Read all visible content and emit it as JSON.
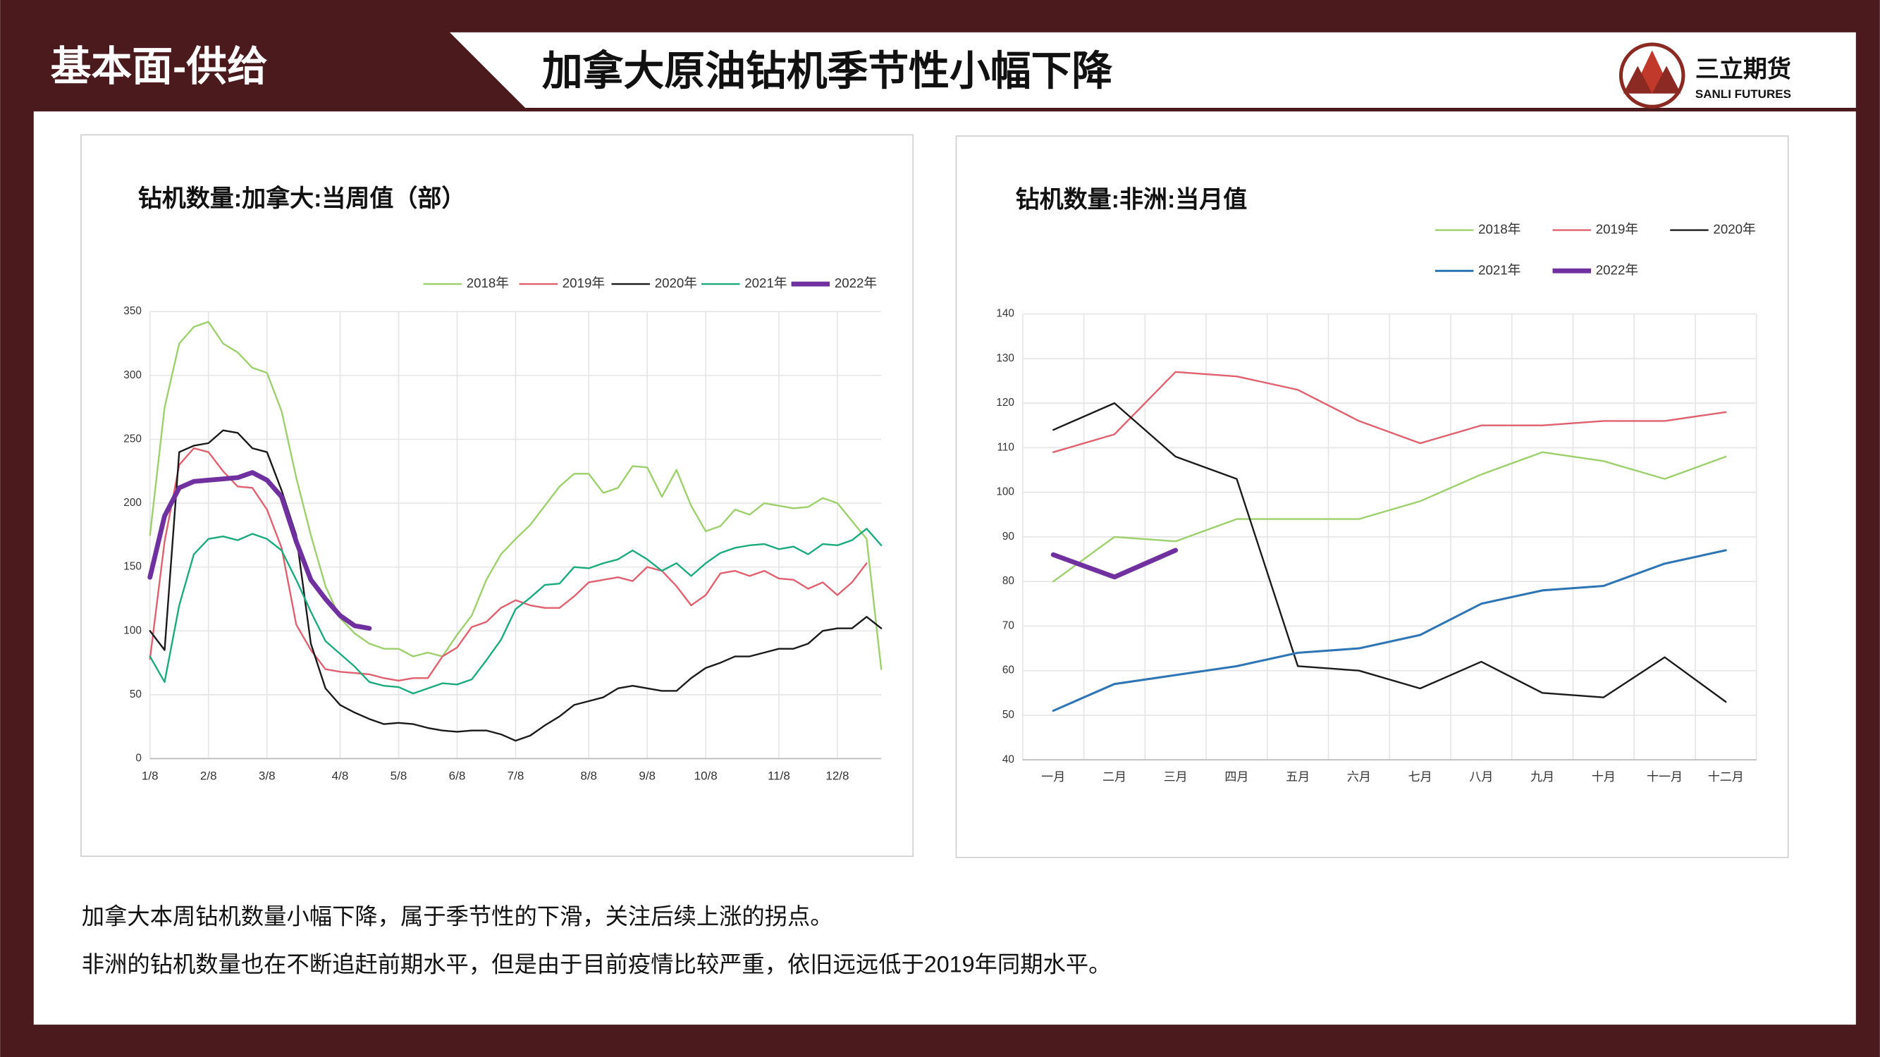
{
  "header": {
    "section": "基本面-供给",
    "title": "加拿大原油钻机季节性小幅下降",
    "logo_cn": "三立期货",
    "logo_en": "SANLI FUTURES"
  },
  "chart_data": [
    {
      "type": "line",
      "title": "钻机数量:加拿大:当周值（部）",
      "categories": [
        "1/8",
        null,
        null,
        null,
        "2/8",
        null,
        null,
        null,
        "3/8",
        null,
        null,
        null,
        null,
        "4/8",
        null,
        null,
        null,
        "5/8",
        null,
        null,
        null,
        "6/8",
        null,
        null,
        null,
        "7/8",
        null,
        null,
        null,
        null,
        "8/8",
        null,
        null,
        null,
        "9/8",
        null,
        null,
        null,
        "10/8",
        null,
        null,
        null,
        null,
        "11/8",
        null,
        null,
        null,
        "12/8",
        null,
        null,
        null
      ],
      "ylim": [
        0,
        350
      ],
      "yticks": [
        0,
        50,
        100,
        150,
        200,
        250,
        300,
        350
      ],
      "grid": true,
      "legend": "top",
      "series": [
        {
          "name": "2018年",
          "color": "#9bd06b",
          "width": 1.4,
          "values": [
            175,
            275,
            325,
            338,
            342,
            325,
            318,
            306,
            302,
            272,
            220,
            175,
            135,
            110,
            98,
            90,
            86,
            86,
            80,
            83,
            80,
            97,
            112,
            140,
            160,
            172,
            183,
            198,
            213,
            223,
            223,
            208,
            212,
            229,
            228,
            205,
            226,
            198,
            178,
            182,
            195,
            191,
            200,
            198,
            196,
            197,
            204,
            200,
            186,
            172,
            70
          ]
        },
        {
          "name": "2019年",
          "color": "#e0606e",
          "width": 1.4,
          "values": [
            78,
            170,
            230,
            243,
            240,
            225,
            213,
            212,
            195,
            165,
            105,
            85,
            70,
            68,
            67,
            66,
            63,
            61,
            63,
            63,
            80,
            87,
            103,
            107,
            118,
            124,
            120,
            118,
            118,
            127,
            138,
            140,
            142,
            139,
            150,
            147,
            135,
            120,
            128,
            145,
            147,
            143,
            147,
            141,
            140,
            133,
            138,
            128,
            138,
            153,
            null
          ]
        },
        {
          "name": "2020年",
          "color": "#1a1a1a",
          "width": 1.4,
          "values": [
            100,
            85,
            240,
            245,
            247,
            257,
            255,
            243,
            240,
            210,
            175,
            90,
            55,
            42,
            36,
            31,
            27,
            28,
            27,
            24,
            22,
            21,
            22,
            22,
            19,
            14,
            18,
            26,
            33,
            42,
            45,
            48,
            55,
            57,
            55,
            53,
            53,
            63,
            71,
            75,
            80,
            80,
            83,
            86,
            86,
            90,
            100,
            102,
            102,
            111,
            102
          ]
        },
        {
          "name": "2021年",
          "color": "#1aab7a",
          "width": 1.4,
          "values": [
            80,
            60,
            120,
            160,
            172,
            174,
            171,
            176,
            172,
            163,
            140,
            115,
            92,
            82,
            72,
            60,
            57,
            56,
            51,
            55,
            59,
            58,
            62,
            77,
            93,
            117,
            126,
            136,
            137,
            150,
            149,
            153,
            156,
            163,
            156,
            147,
            153,
            143,
            153,
            161,
            165,
            167,
            168,
            164,
            166,
            160,
            168,
            167,
            171,
            180,
            167
          ]
        },
        {
          "name": "2022年",
          "color": "#7030a0",
          "width": 4,
          "values": [
            142,
            190,
            212,
            217,
            218,
            219,
            220,
            224,
            218,
            205,
            170,
            140,
            125,
            112,
            104,
            102,
            null,
            null,
            null,
            null,
            null,
            null,
            null,
            null,
            null,
            null,
            null,
            null,
            null,
            null,
            null,
            null,
            null,
            null,
            null,
            null,
            null,
            null,
            null,
            null,
            null,
            null,
            null,
            null,
            null,
            null,
            null,
            null,
            null,
            null,
            null
          ]
        }
      ]
    },
    {
      "type": "line",
      "title": "钻机数量:非洲:当月值",
      "categories": [
        "一月",
        "二月",
        "三月",
        "四月",
        "五月",
        "六月",
        "七月",
        "八月",
        "九月",
        "十月",
        "十一月",
        "十二月"
      ],
      "ylim": [
        40,
        140
      ],
      "yticks": [
        40,
        50,
        60,
        70,
        80,
        90,
        100,
        110,
        120,
        130,
        140
      ],
      "grid": true,
      "legend": "top",
      "series": [
        {
          "name": "2018年",
          "color": "#9bd06b",
          "width": 1.4,
          "values": [
            80,
            90,
            89,
            94,
            94,
            94,
            98,
            104,
            109,
            107,
            103,
            108
          ]
        },
        {
          "name": "2019年",
          "color": "#e0606e",
          "width": 1.4,
          "values": [
            109,
            113,
            127,
            126,
            123,
            116,
            111,
            115,
            115,
            116,
            116,
            118
          ]
        },
        {
          "name": "2020年",
          "color": "#1a1a1a",
          "width": 1.4,
          "values": [
            114,
            120,
            108,
            103,
            61,
            60,
            56,
            62,
            55,
            54,
            63,
            53
          ]
        },
        {
          "name": "2021年",
          "color": "#2e75b6",
          "width": 1.8,
          "values": [
            51,
            57,
            59,
            61,
            64,
            65,
            68,
            75,
            78,
            79,
            84,
            87
          ]
        },
        {
          "name": "2022年",
          "color": "#7030a0",
          "width": 4,
          "values": [
            86,
            81,
            87,
            null,
            null,
            null,
            null,
            null,
            null,
            null,
            null,
            null
          ]
        }
      ]
    }
  ],
  "notes": [
    "加拿大本周钻机数量小幅下降，属于季节性的下滑，关注后续上涨的拐点。",
    "非洲的钻机数量也在不断追赶前期水平，但是由于目前疫情比较严重，依旧远远低于2019年同期水平。"
  ]
}
